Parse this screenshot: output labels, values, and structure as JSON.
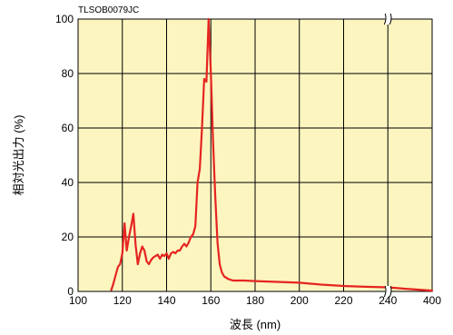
{
  "chart_data": {
    "type": "line",
    "figure_code": "TLSOB0079JC",
    "xlabel": "波長 (nm)",
    "ylabel": "相対光出力 (%)",
    "xlim": [
      100,
      400
    ],
    "x_break": [
      240,
      400
    ],
    "ylim": [
      0,
      100
    ],
    "x_ticks": [
      "100",
      "120",
      "140",
      "160",
      "180",
      "200",
      "220",
      "240",
      "400"
    ],
    "y_ticks": [
      "0",
      "20",
      "40",
      "60",
      "80",
      "100"
    ],
    "grid": true,
    "plot_background": "#fcf5c0",
    "line_color": "#e52420",
    "series": [
      {
        "x": [
          115,
          116,
          117,
          118,
          119,
          120,
          121,
          122,
          123,
          124,
          125,
          126,
          127,
          128,
          129,
          130,
          131,
          132,
          133,
          134,
          135,
          136,
          137,
          138,
          139,
          140,
          141,
          142,
          143,
          144,
          145,
          146,
          147,
          148,
          149,
          150,
          151,
          152,
          153,
          154,
          155,
          156,
          157,
          158,
          159,
          160,
          161,
          162,
          163,
          164,
          165,
          166,
          168,
          170,
          175,
          180,
          190,
          200,
          210,
          220,
          230,
          240,
          300,
          400
        ],
        "y": [
          0.5,
          3,
          6,
          9,
          10,
          14,
          25,
          15,
          20,
          24,
          28.5,
          17,
          10,
          14,
          16.5,
          15,
          11,
          10,
          11.5,
          12.5,
          13,
          13.5,
          12,
          13.5,
          13,
          14,
          12,
          14,
          14.5,
          14,
          15,
          15,
          16.5,
          17.5,
          16.5,
          18,
          20,
          21,
          24,
          40,
          45,
          60,
          78,
          77,
          100,
          80,
          55,
          35,
          18,
          10,
          7,
          5.5,
          4.5,
          4,
          4,
          3.8,
          3.5,
          3.2,
          2.5,
          2,
          1.7,
          1.5,
          1,
          0.3
        ]
      }
    ]
  }
}
